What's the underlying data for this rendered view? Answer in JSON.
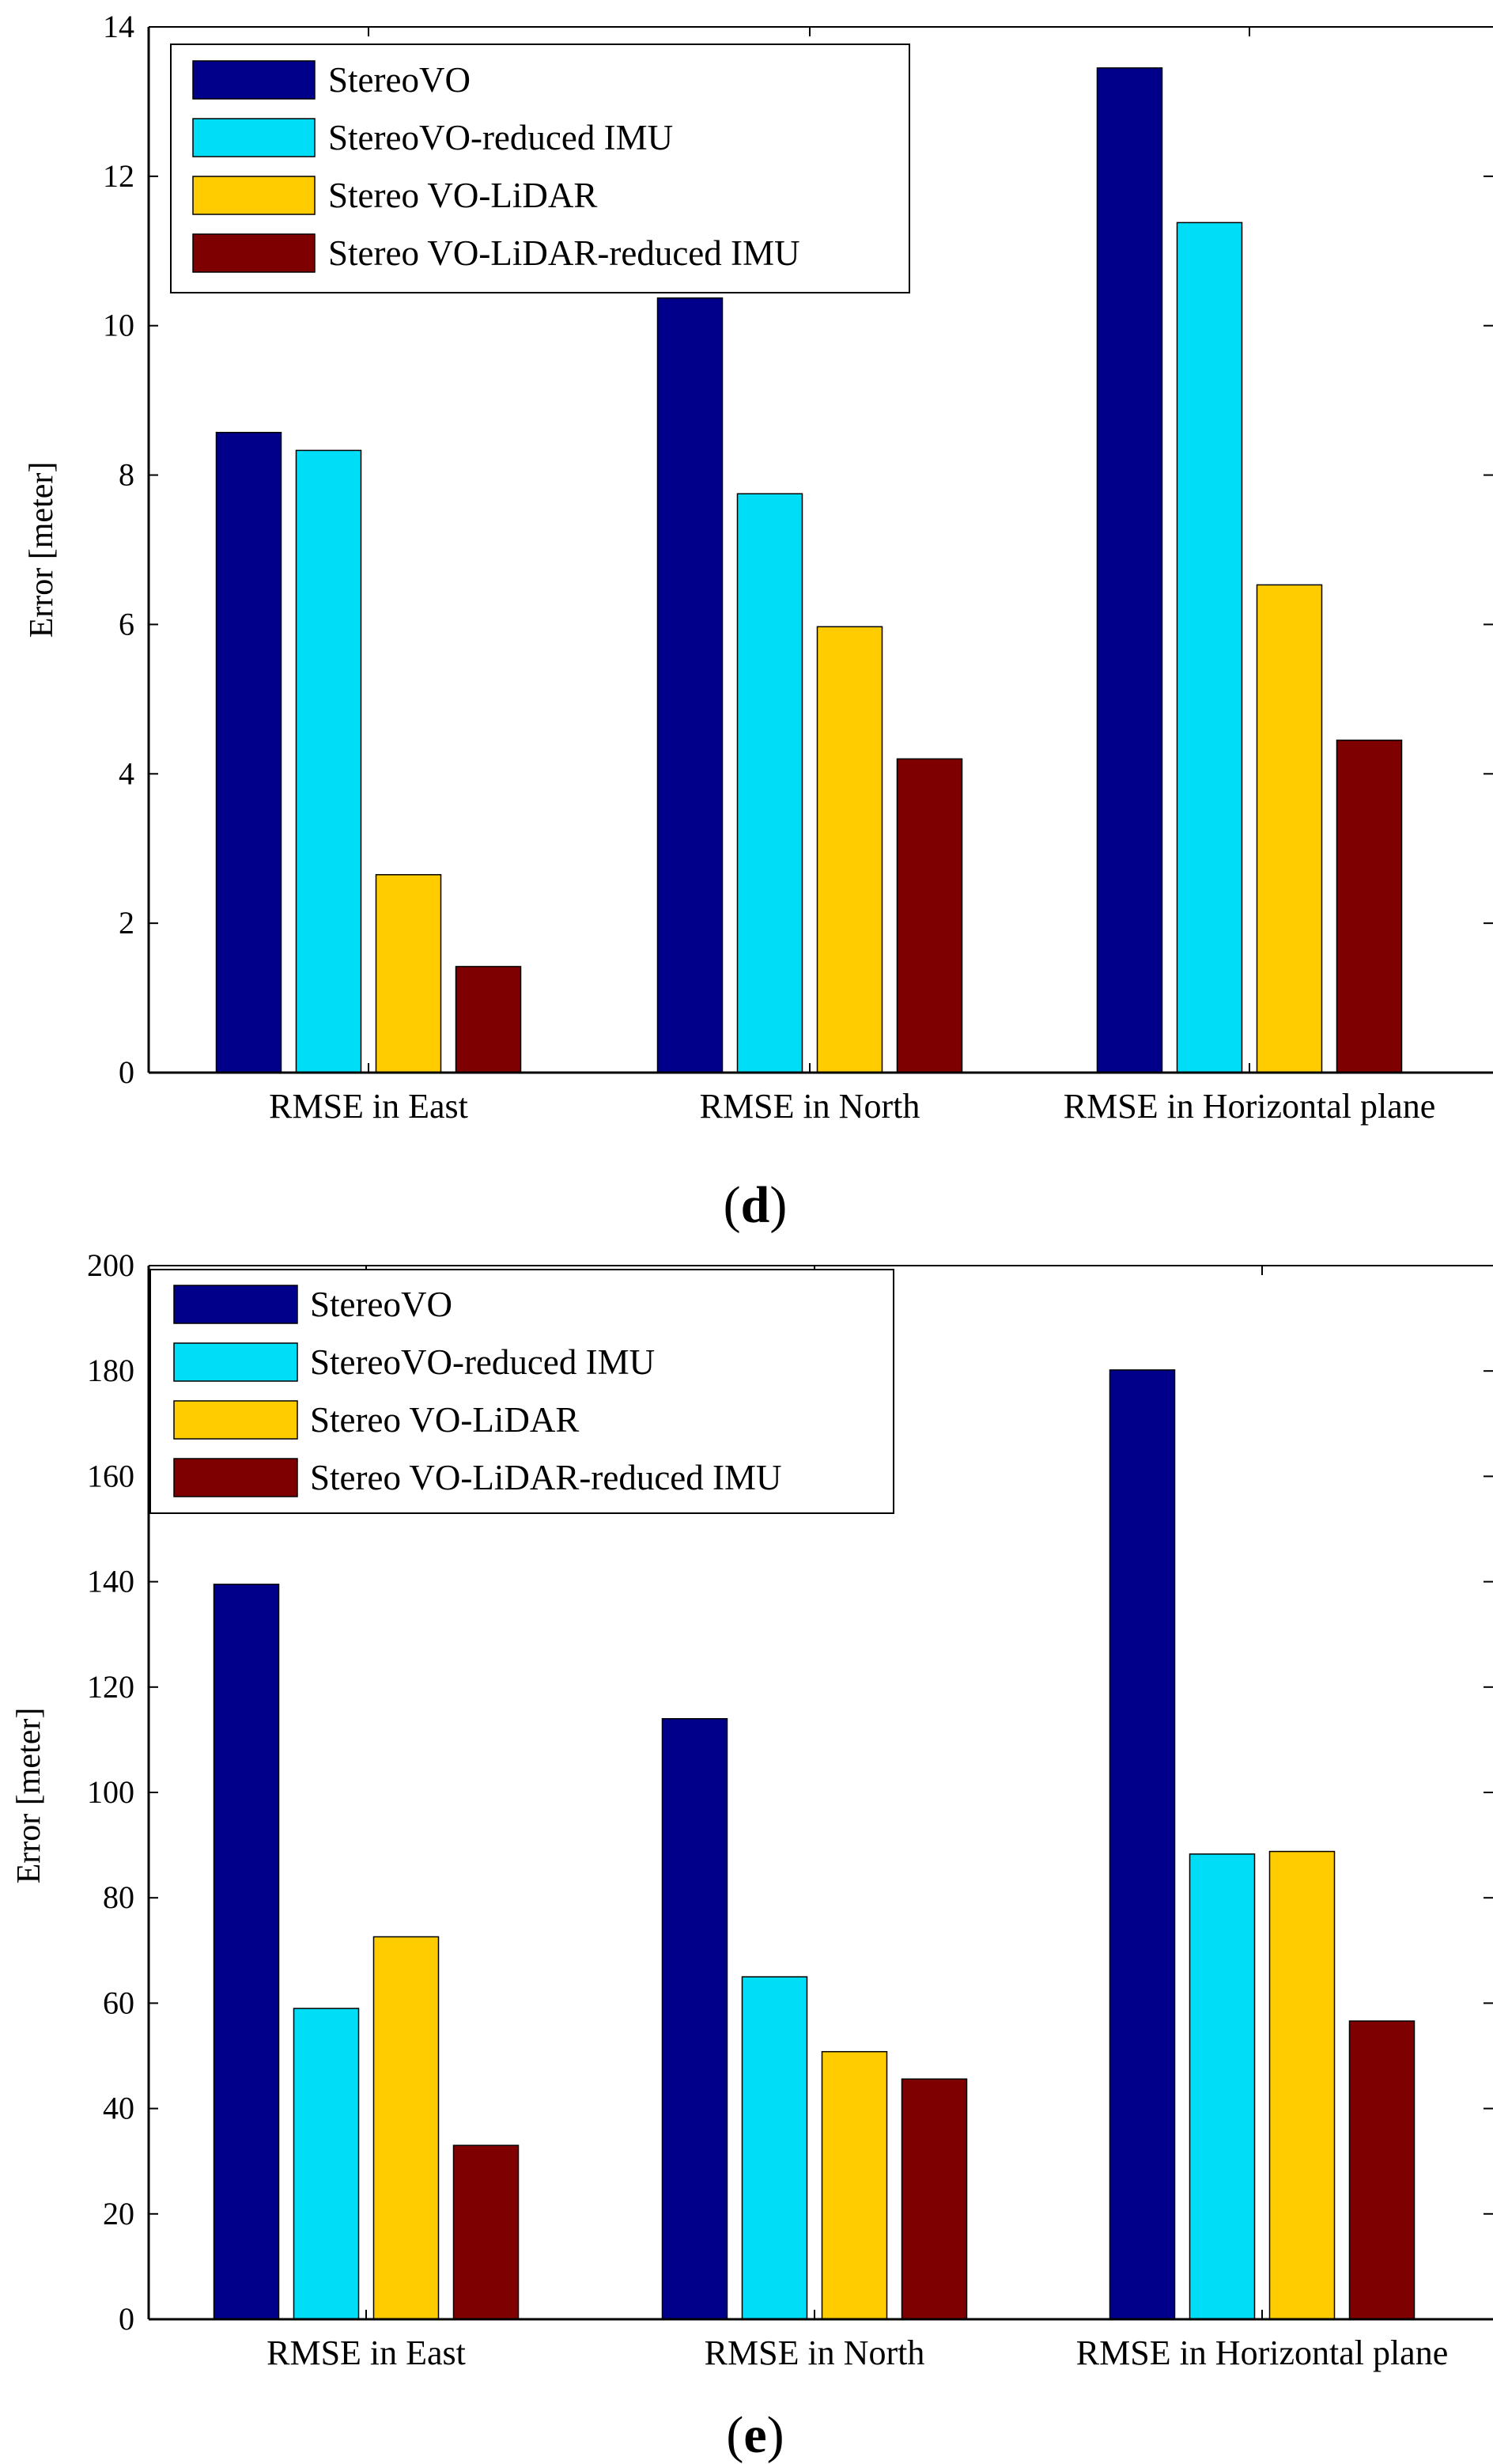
{
  "chart_data": [
    {
      "type": "bar",
      "panel_label": "d",
      "ylabel": "Error [meter]",
      "xlabel": "",
      "ylim": [
        0,
        14
      ],
      "yticks": [
        0,
        2,
        4,
        6,
        8,
        10,
        12,
        14
      ],
      "categories": [
        "RMSE in East",
        "RMSE in North",
        "RMSE in Horizontal plane"
      ],
      "series": [
        {
          "name": "StereoVO",
          "color": "#00008B",
          "values": [
            8.57,
            10.37,
            13.45
          ]
        },
        {
          "name": "StereoVO-reduced IMU",
          "color": "#00DDF6",
          "values": [
            8.33,
            7.75,
            11.38
          ]
        },
        {
          "name": "Stereo VO-LiDAR",
          "color": "#FFCC00",
          "values": [
            2.65,
            5.97,
            6.53
          ]
        },
        {
          "name": "Stereo VO-LiDAR-reduced IMU",
          "color": "#7F0000",
          "values": [
            1.42,
            4.2,
            4.45
          ]
        }
      ],
      "legend_position": "top-left",
      "grid": false
    },
    {
      "type": "bar",
      "panel_label": "e",
      "ylabel": "Error [meter]",
      "xlabel": "",
      "ylim": [
        0,
        200
      ],
      "yticks": [
        0,
        20,
        40,
        60,
        80,
        100,
        120,
        140,
        160,
        180,
        200
      ],
      "categories": [
        "RMSE in East",
        "RMSE in North",
        "RMSE in Horizontal plane"
      ],
      "series": [
        {
          "name": "StereoVO",
          "color": "#00008B",
          "values": [
            139.5,
            114.0,
            180.2
          ]
        },
        {
          "name": "StereoVO-reduced IMU",
          "color": "#00DDF6",
          "values": [
            59.0,
            65.0,
            88.3
          ]
        },
        {
          "name": "Stereo VO-LiDAR",
          "color": "#FFCC00",
          "values": [
            72.6,
            50.8,
            88.8
          ]
        },
        {
          "name": "Stereo VO-LiDAR-reduced IMU",
          "color": "#7F0000",
          "values": [
            33.0,
            45.6,
            56.6
          ]
        }
      ],
      "legend_position": "top-left",
      "grid": false
    }
  ]
}
